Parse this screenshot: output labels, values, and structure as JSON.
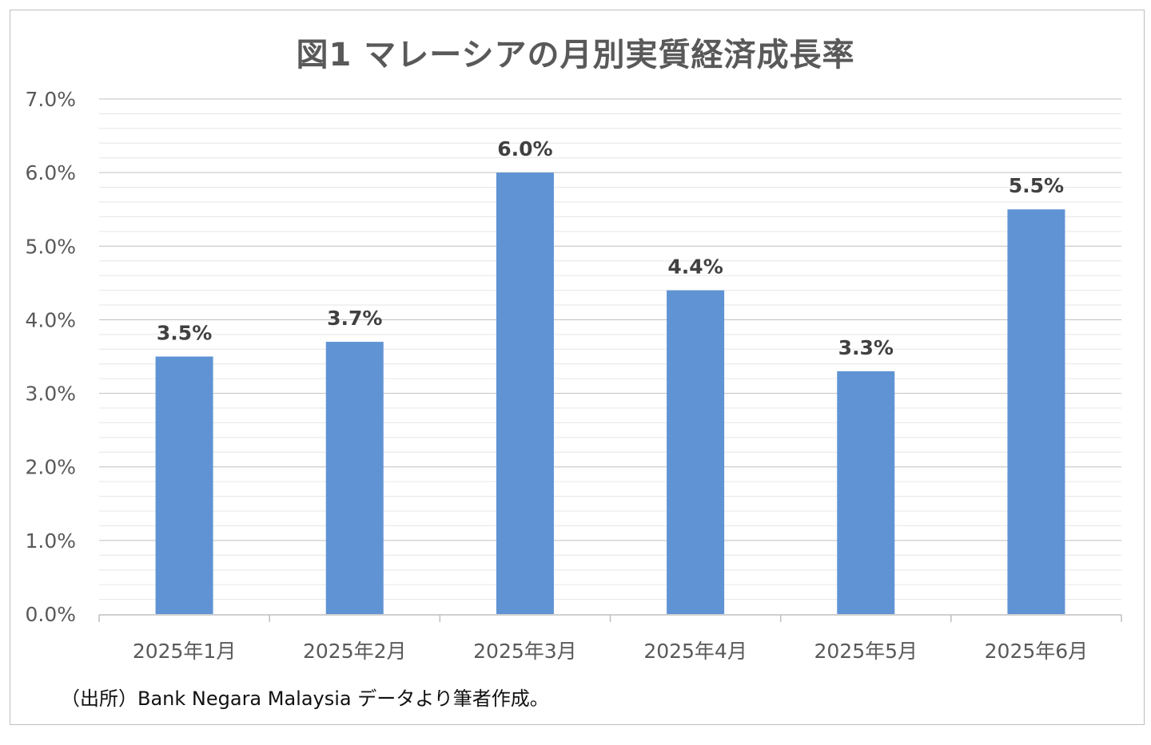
{
  "chart_data": {
    "type": "bar",
    "title": "図1 マレーシアの月別実質経済成長率",
    "categories": [
      "2025年1月",
      "2025年2月",
      "2025年3月",
      "2025年4月",
      "2025年5月",
      "2025年6月"
    ],
    "values": [
      3.5,
      3.7,
      6.0,
      4.4,
      3.3,
      5.5
    ],
    "data_labels": [
      "3.5%",
      "3.7%",
      "6.0%",
      "4.4%",
      "3.3%",
      "5.5%"
    ],
    "y_ticks": [
      "0.0%",
      "1.0%",
      "2.0%",
      "3.0%",
      "4.0%",
      "5.0%",
      "6.0%",
      "7.0%"
    ],
    "ylim": [
      0,
      7
    ],
    "xlabel": "",
    "ylabel": "",
    "grid": true,
    "bar_color": "#5f93d4",
    "label_color": "#404040"
  },
  "source_note": "（出所）Bank Negara Malaysia データより筆者作成。"
}
